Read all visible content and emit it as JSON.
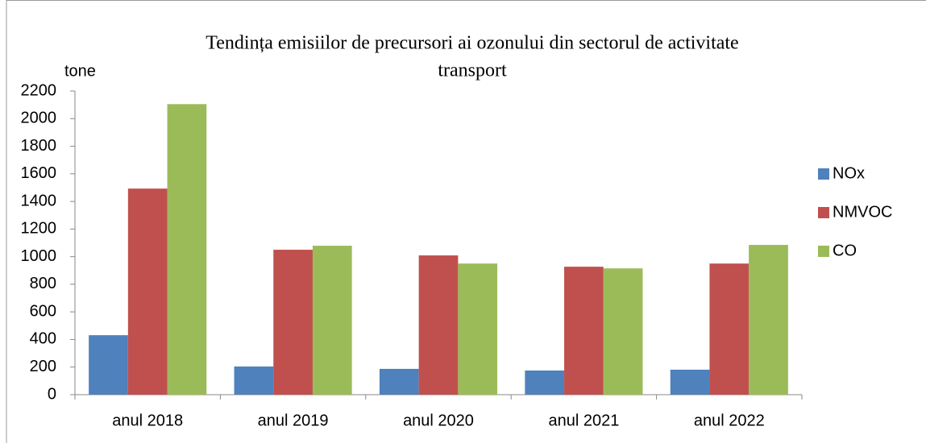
{
  "chart_data": {
    "type": "bar",
    "title_lines": [
      "Tendința emisiilor de precursori ai ozonului din sectorul de activitate",
      "transport"
    ],
    "y_label": "tone",
    "categories": [
      "anul 2018",
      "anul 2019",
      "anul 2020",
      "anul 2021",
      "anul 2022"
    ],
    "series": [
      {
        "name": "NOx",
        "color": "#4f81bd",
        "values": [
          431,
          204,
          187,
          175,
          181
        ]
      },
      {
        "name": "NMVOC",
        "color": "#c0504d",
        "values": [
          1493,
          1050,
          1009,
          927,
          950
        ]
      },
      {
        "name": "CO",
        "color": "#9bbb59",
        "values": [
          2105,
          1079,
          950,
          915,
          1085
        ]
      }
    ],
    "ylim": [
      0,
      2200
    ],
    "yticks": [
      0,
      200,
      400,
      600,
      800,
      1000,
      1200,
      1400,
      1600,
      1800,
      2000,
      2200
    ],
    "grid": false,
    "legend": "right"
  }
}
